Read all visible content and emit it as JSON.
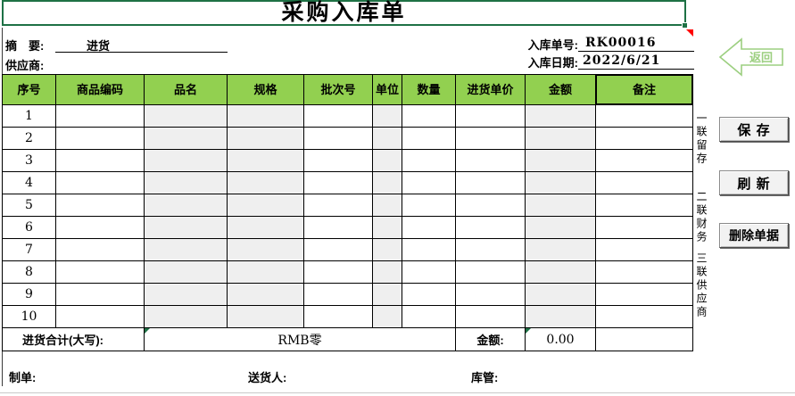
{
  "title": "采购入库单",
  "meta": {
    "summary_label": "摘　要:",
    "summary_value": "进货",
    "supplier_label": "供应商:",
    "supplier_value": "",
    "order_no_label": "入库单号:",
    "order_no_value": "RK00016",
    "date_label": "入库日期:",
    "date_value": "2022/6/21"
  },
  "table": {
    "headers": [
      "序号",
      "商品编码",
      "品名",
      "规格",
      "批次号",
      "单位",
      "数量",
      "进货单价",
      "金额",
      "备注"
    ],
    "row_numbers": [
      "1",
      "2",
      "3",
      "4",
      "5",
      "6",
      "7",
      "8",
      "9",
      "10"
    ],
    "gray_column_indices": [
      2,
      3,
      5,
      8
    ],
    "total_row": {
      "label": "进货合计(大写):",
      "amount_words": "RMB零",
      "amount_label": "金额:",
      "amount_value": "0.00"
    }
  },
  "footer": {
    "maker_label": "制单:",
    "deliverer_label": "送货人:",
    "keeper_label": "库管:"
  },
  "side": {
    "copies": [
      "一联留存",
      "二联财务",
      "三联供应商"
    ]
  },
  "buttons": {
    "back_label": "返回",
    "save_label": "保 存",
    "refresh_label": "刷 新",
    "delete_label": "删除单据"
  },
  "colors": {
    "header_green": "#92D050",
    "title_border_green": "#1E7145",
    "back_arrow_green": "#9CCF80",
    "gray_cell": "#EFEFEF",
    "error_indicator_green": "#1E7145",
    "comment_marker_red": "#FF0000"
  }
}
